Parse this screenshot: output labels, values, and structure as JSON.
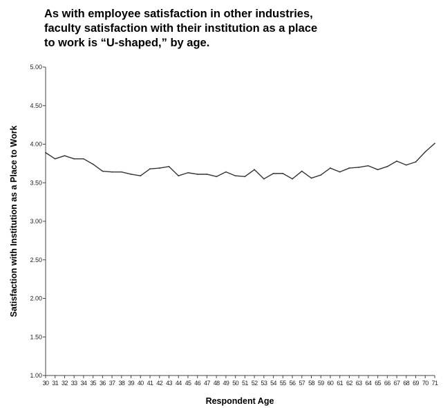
{
  "chart_data": {
    "type": "line",
    "title": "As with employee satisfaction in other industries,\nfaculty satisfaction with their institution as a place\nto work is “U-shaped,” by age.",
    "xlabel": "Respondent Age",
    "ylabel": "Satisfaction with Institution as a Place to Work",
    "ylim": [
      1.0,
      5.0
    ],
    "yticks": [
      "1.00",
      "1.50",
      "2.00",
      "2.50",
      "3.00",
      "3.50",
      "4.00",
      "4.50",
      "5.00"
    ],
    "x": [
      30,
      31,
      32,
      33,
      34,
      35,
      36,
      37,
      38,
      39,
      40,
      41,
      42,
      43,
      44,
      45,
      46,
      47,
      48,
      49,
      50,
      51,
      52,
      53,
      54,
      55,
      56,
      57,
      58,
      59,
      60,
      61,
      62,
      63,
      64,
      65,
      66,
      67,
      68,
      69,
      70,
      71
    ],
    "xtick_labels": [
      "30",
      "31",
      "32",
      "33",
      "34",
      "35",
      "36",
      "37",
      "38",
      "39",
      "40",
      "41",
      "42",
      "43",
      "44",
      "45",
      "46",
      "47",
      "48",
      "49",
      "50",
      "51",
      "52",
      "53",
      "54",
      "55",
      "56",
      "57",
      "58",
      "59",
      "60",
      "61",
      "62",
      "63",
      "64",
      "65",
      "66",
      "67",
      "68",
      "69",
      "70",
      "71"
    ],
    "series": [
      {
        "values": [
          3.89,
          3.81,
          3.85,
          3.81,
          3.81,
          3.74,
          3.65,
          3.64,
          3.64,
          3.61,
          3.59,
          3.68,
          3.69,
          3.71,
          3.59,
          3.63,
          3.61,
          3.61,
          3.58,
          3.64,
          3.59,
          3.58,
          3.67,
          3.55,
          3.62,
          3.62,
          3.55,
          3.65,
          3.56,
          3.6,
          3.69,
          3.64,
          3.69,
          3.7,
          3.72,
          3.67,
          3.71,
          3.78,
          3.73,
          3.77,
          3.9,
          4.01
        ]
      }
    ],
    "grid": false,
    "line_color": "#333333"
  }
}
